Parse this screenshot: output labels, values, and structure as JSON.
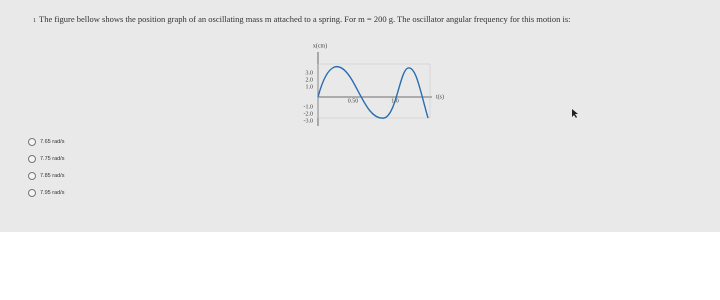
{
  "question": {
    "number": "1",
    "text": "The figure bellow shows the position graph of an oscillating mass m attached to a spring. For m = 200 g. The oscillator angular frequency for this motion is:"
  },
  "figure": {
    "y_label": "x(cm)",
    "x_label": "t(s)",
    "y_ticks": [
      "3.0",
      "2.0",
      "1.0",
      "-1.0",
      "-2.0",
      "-3.0"
    ],
    "x_ticks": [
      "0.50",
      "1.0"
    ]
  },
  "options": [
    "7.65 rad/s",
    "7.75 rad/s",
    "7.85 rad/s",
    "7.95 rad/s"
  ]
}
